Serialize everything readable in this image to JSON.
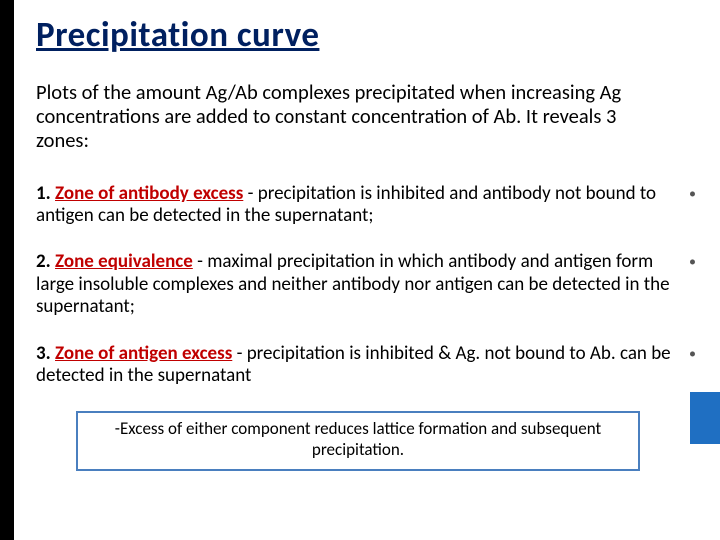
{
  "title": "Precipitation curve",
  "intro": "Plots of the amount Ag/Ab complexes precipitated when increasing  Ag concentrations are added to  constant  concentration of Ab. It reveals  3 zones:",
  "zones": [
    {
      "num": "1.",
      "name": "Zone of antibody excess",
      "sep": " - ",
      "text": "precipitation is inhibited and antibody not bound to antigen can be detected in the supernatant;"
    },
    {
      "num": "2.",
      "name": "Zone equivalence",
      "sep": " - ",
      "text": "maximal  precipitation  in  which  antibody and  antigen  form  large  insoluble  complexes  and  neither  antibody  nor antigen can be detected in the supernatant;"
    },
    {
      "num": "3.",
      "name": "Zone of antigen excess",
      "sep": "  -  ",
      "text": "precipitation  is  inhibited & Ag.  not  bound  to Ab. can be detected in the supernatant"
    }
  ],
  "note": "-Excess of either component reduces lattice formation and subsequent precipitation.",
  "colors": {
    "title": "#002060",
    "zone_name": "#c00000",
    "left_bar": "#000000",
    "right_accent": "#1f6fc2",
    "box_border": "#4a7fbf"
  }
}
